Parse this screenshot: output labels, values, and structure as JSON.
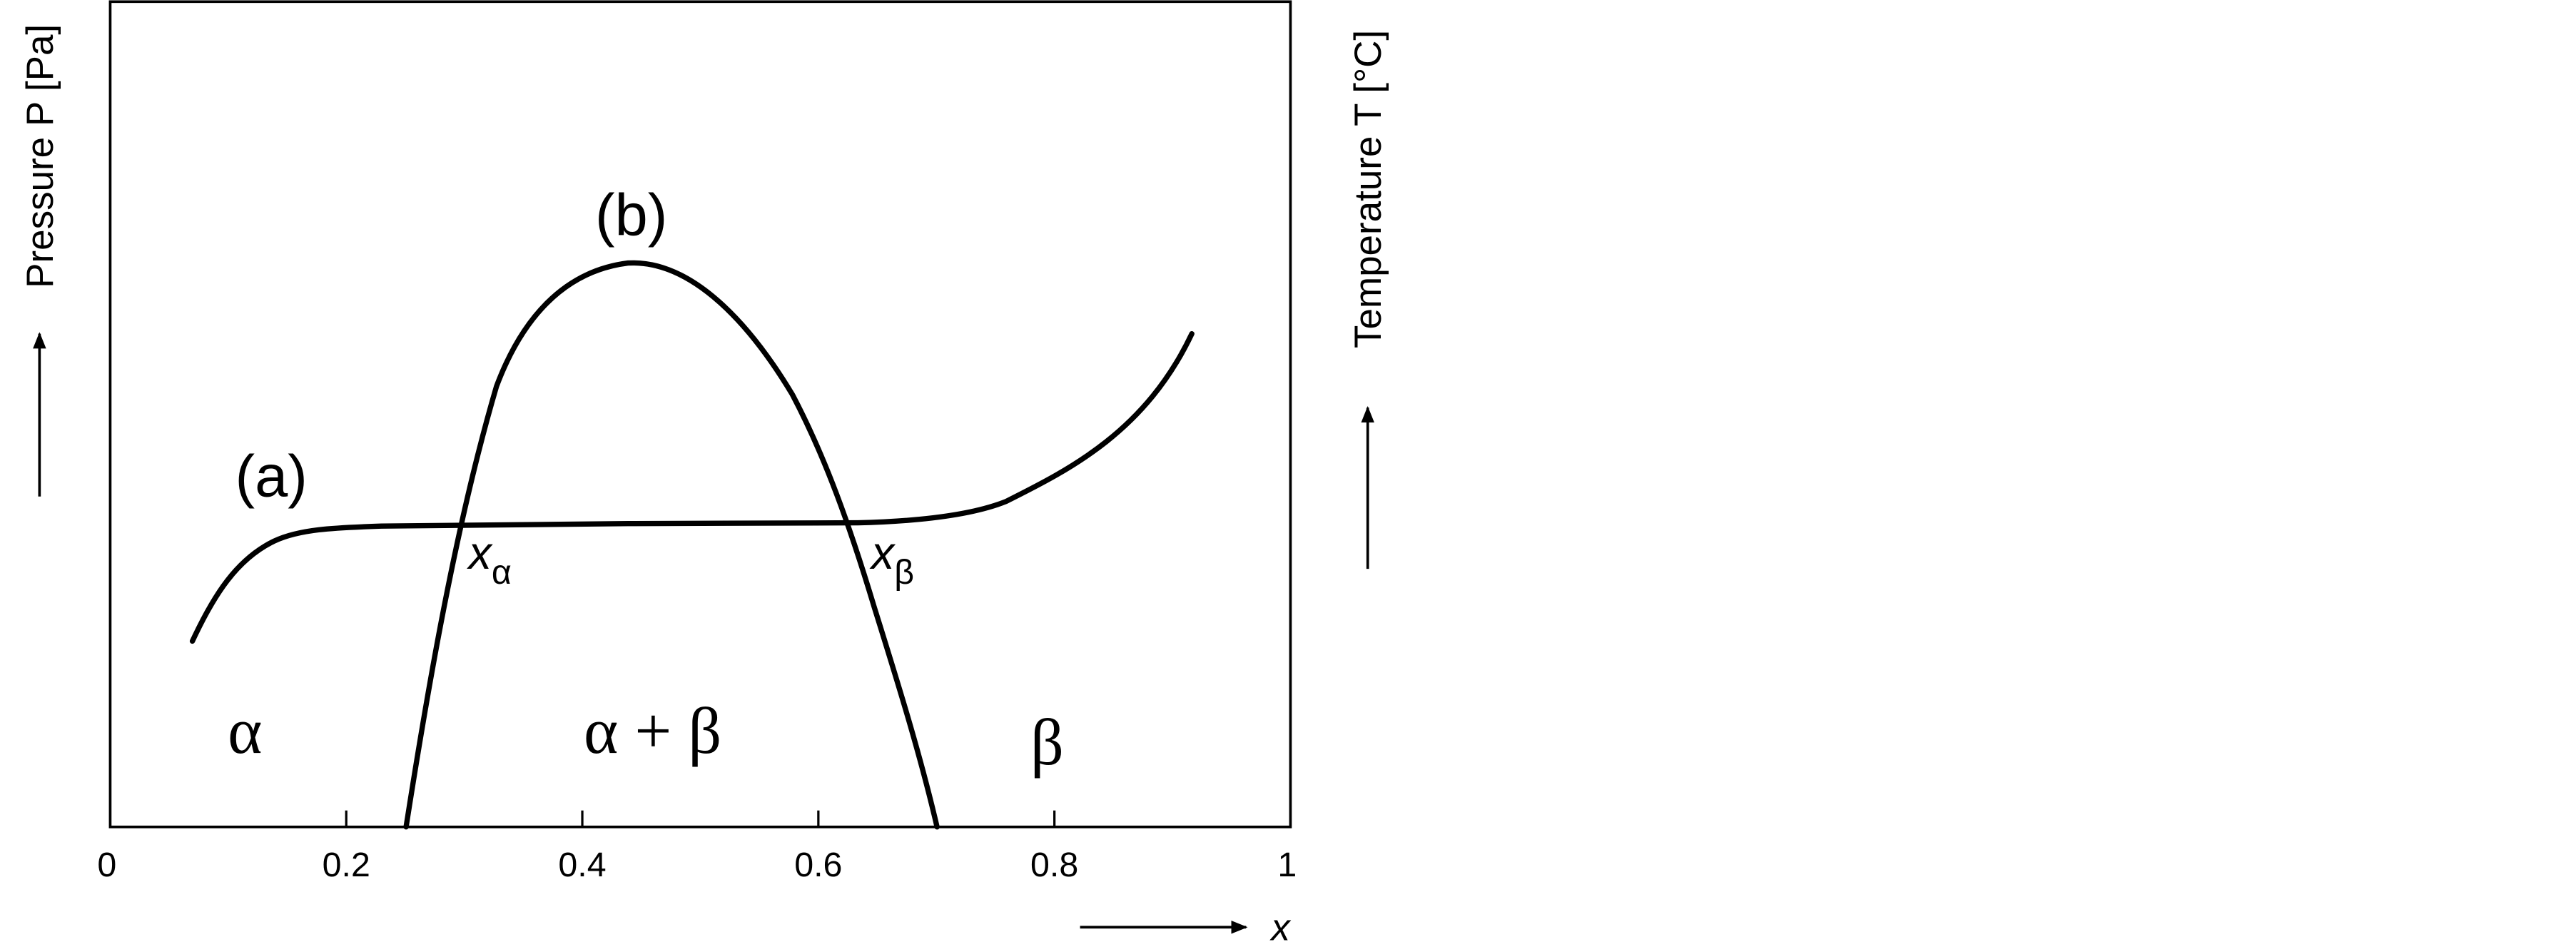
{
  "axes": {
    "x_label": "x",
    "left_label": "Pressure P [Pa]",
    "right_label": "Temperature T [°C]",
    "x_ticks": [
      "0",
      "0.2",
      "0.4",
      "0.6",
      "0.8",
      "1"
    ]
  },
  "curves": {
    "a": "(a)",
    "b": "(b)"
  },
  "points": [
    {
      "symbol": "x",
      "subscript": "α"
    },
    {
      "symbol": "x",
      "subscript": "β"
    }
  ],
  "regions": [
    "α",
    "α + β",
    "β"
  ]
}
